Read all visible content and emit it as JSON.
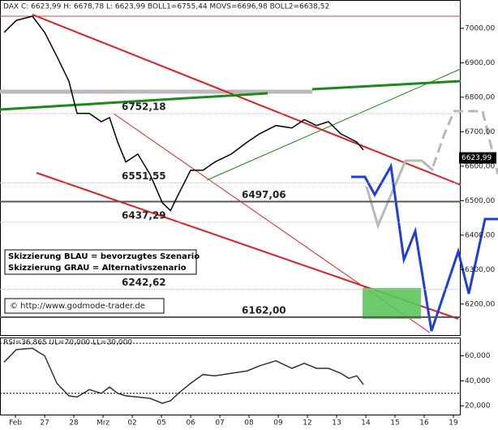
{
  "chart_data": [
    {
      "type": "line",
      "title": "DAX C: 6623,99 H: 6678,78 L: 6623,99 BOLL1=6755,44 MOVS=6696,98 BOLL2=6638,52",
      "x": [
        -0.39,
        0.03,
        0.58,
        1.0,
        1.42,
        1.83,
        2.11,
        2.53,
        2.94,
        3.22,
        3.5,
        3.78,
        4.19,
        4.61,
        5.03,
        5.31,
        5.58,
        6.0,
        6.42,
        6.83,
        7.39,
        7.94,
        8.36,
        8.92,
        9.47,
        9.89,
        10.31,
        10.72,
        11.14,
        11.42,
        11.69,
        11.92
      ],
      "series": [
        {
          "name": "DAX",
          "color": "#000000",
          "values": [
            6988,
            7023,
            7035,
            6988,
            6918,
            6847,
            6753,
            6753,
            6729,
            6741,
            6670,
            6612,
            6635,
            6576,
            6494,
            6471,
            6518,
            6588,
            6588,
            6612,
            6635,
            6670,
            6694,
            6718,
            6711,
            6735,
            6718,
            6729,
            6694,
            6682,
            6670,
            6647
          ]
        }
      ],
      "xlim": [
        -0.53,
        15.25
      ],
      "xticks": [
        {
          "value": 0,
          "label": "Feb"
        },
        {
          "value": 1,
          "label": "27"
        },
        {
          "value": 2,
          "label": "28"
        },
        {
          "value": 3,
          "label": "Mrz"
        },
        {
          "value": 4,
          "label": "02"
        },
        {
          "value": 5,
          "label": "05"
        },
        {
          "value": 6,
          "label": "06"
        },
        {
          "value": 7,
          "label": "07"
        },
        {
          "value": 8,
          "label": "08"
        },
        {
          "value": 9,
          "label": "09"
        },
        {
          "value": 10,
          "label": "12"
        },
        {
          "value": 11,
          "label": "13"
        },
        {
          "value": 12,
          "label": "14"
        },
        {
          "value": 13,
          "label": "15"
        },
        {
          "value": 14,
          "label": "16"
        },
        {
          "value": 15,
          "label": "19"
        }
      ],
      "ylim": [
        6110,
        7075
      ],
      "yticks": [
        {
          "value": 7000,
          "label": "7000,00"
        },
        {
          "value": 6900,
          "label": "6900,00"
        },
        {
          "value": 6800,
          "label": "6800,00"
        },
        {
          "value": 6700,
          "label": "6700,00"
        },
        {
          "value": 6600,
          "label": "6600,00"
        },
        {
          "value": 6500,
          "label": "6500,00"
        },
        {
          "value": 6400,
          "label": "6400,00"
        },
        {
          "value": 6300,
          "label": "6300,00"
        },
        {
          "value": 6200,
          "label": "6200,00"
        }
      ],
      "levels": [
        {
          "value": 6752.18,
          "label": "6752,18",
          "color": "#bbbbbb"
        },
        {
          "value": 6551.55,
          "label": "6551,55",
          "color": "#bbbbbb"
        },
        {
          "value": 6497.06,
          "label": "6497,06",
          "color": "#555555"
        },
        {
          "value": 6437.29,
          "label": "6437,29",
          "color": "#bbbbbb"
        },
        {
          "value": 6242.62,
          "label": "6242,62",
          "color": "#bbbbbb"
        },
        {
          "value": 6162.0,
          "label": "6162,00",
          "color": "#555555"
        }
      ],
      "last_price": {
        "value": 6623.99,
        "label": "6623,99"
      },
      "annotations": [
        "Skizzierung BLAU = bevorzugtes Szenario",
        "Skizzierung GRAU = Alternativszenario",
        "© http://www.godmode-trader.de"
      ]
    },
    {
      "type": "line",
      "title": "RSI=36,865 UL=70,000 LL=30,000",
      "x": [
        -0.39,
        0.03,
        0.58,
        1.0,
        1.42,
        1.83,
        2.11,
        2.53,
        2.94,
        3.22,
        3.5,
        3.78,
        4.19,
        4.61,
        5.03,
        5.31,
        5.58,
        6.0,
        6.42,
        6.83,
        7.39,
        7.94,
        8.36,
        8.92,
        9.47,
        9.89,
        10.31,
        10.72,
        11.14,
        11.42,
        11.69,
        11.92
      ],
      "series": [
        {
          "name": "RSI",
          "color": "#333333",
          "values": [
            55,
            65,
            66,
            60,
            38,
            28,
            27,
            33,
            30,
            35,
            30,
            28,
            27,
            26,
            22,
            24,
            30,
            38,
            45,
            44,
            46,
            48,
            52,
            56,
            50,
            54,
            50,
            50,
            46,
            42,
            44,
            37
          ]
        }
      ],
      "xlim": [
        -0.53,
        15.25
      ],
      "ylim": [
        13,
        74
      ],
      "yticks": [
        {
          "value": 60,
          "label": "60,000"
        },
        {
          "value": 40,
          "label": "40,000"
        },
        {
          "value": 20,
          "label": "20,000"
        }
      ],
      "upper": 70,
      "lower": 30
    }
  ]
}
